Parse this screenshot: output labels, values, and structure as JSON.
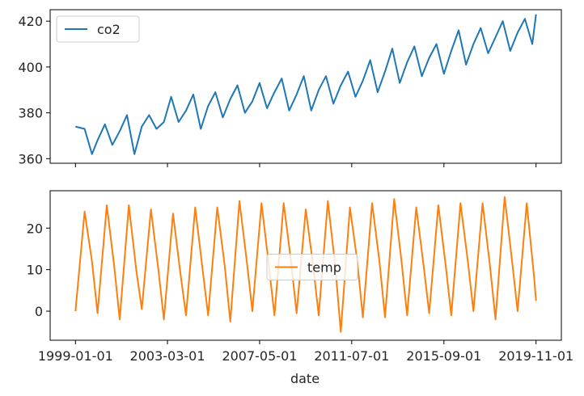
{
  "chart_data": [
    {
      "type": "line",
      "title": "",
      "xlabel": "",
      "ylabel": "",
      "ylim": [
        358,
        425
      ],
      "yticks": [
        360,
        380,
        400,
        420
      ],
      "grid": false,
      "legend": "top-left",
      "series": [
        {
          "name": "co2",
          "color": "#1f77b4",
          "x": [
            "1999-01-01",
            "1999-06-01",
            "1999-10-01",
            "2000-01-01",
            "2000-05-01",
            "2000-09-01",
            "2001-01-01",
            "2001-05-01",
            "2001-09-01",
            "2002-01-01",
            "2002-05-01",
            "2002-09-01",
            "2003-01-01",
            "2003-05-01",
            "2003-09-01",
            "2004-01-01",
            "2004-05-01",
            "2004-09-01",
            "2005-01-01",
            "2005-05-01",
            "2005-09-01",
            "2006-01-01",
            "2006-05-01",
            "2006-09-01",
            "2007-01-01",
            "2007-05-01",
            "2007-09-01",
            "2008-01-01",
            "2008-05-01",
            "2008-09-01",
            "2009-01-01",
            "2009-05-01",
            "2009-09-01",
            "2010-01-01",
            "2010-05-01",
            "2010-09-01",
            "2011-01-01",
            "2011-05-01",
            "2011-09-01",
            "2012-01-01",
            "2012-05-01",
            "2012-09-01",
            "2013-01-01",
            "2013-05-01",
            "2013-09-01",
            "2014-01-01",
            "2014-05-01",
            "2014-09-01",
            "2015-01-01",
            "2015-05-01",
            "2015-09-01",
            "2016-01-01",
            "2016-05-01",
            "2016-09-01",
            "2017-01-01",
            "2017-05-01",
            "2017-09-01",
            "2018-01-01",
            "2018-05-01",
            "2018-09-01",
            "2019-01-01",
            "2019-05-01",
            "2019-09-01",
            "2019-11-01"
          ],
          "values": [
            374,
            373,
            362,
            368,
            375,
            366,
            372,
            379,
            362,
            374,
            379,
            373,
            376,
            387,
            376,
            381,
            388,
            373,
            383,
            389,
            378,
            386,
            392,
            380,
            385,
            393,
            382,
            389,
            395,
            381,
            388,
            396,
            381,
            390,
            396,
            384,
            392,
            398,
            387,
            394,
            403,
            389,
            398,
            408,
            393,
            402,
            409,
            396,
            404,
            410,
            397,
            407,
            416,
            401,
            410,
            417,
            406,
            413,
            420,
            407,
            415,
            421,
            410,
            423
          ]
        }
      ]
    },
    {
      "type": "line",
      "title": "",
      "xlabel": "date",
      "ylabel": "",
      "ylim": [
        -7,
        29
      ],
      "yticks": [
        0,
        10,
        20
      ],
      "xticks": [
        "1999-01-01",
        "2003-03-01",
        "2007-05-01",
        "2011-07-01",
        "2015-09-01",
        "2019-11-01"
      ],
      "grid": false,
      "legend": "center",
      "series": [
        {
          "name": "temp",
          "color": "#ff7f0e",
          "x": [
            "1999-01-01",
            "1999-06-01",
            "1999-10-01",
            "2000-01-01",
            "2000-06-01",
            "2000-10-01",
            "2001-01-01",
            "2001-06-01",
            "2001-10-01",
            "2002-01-01",
            "2002-06-01",
            "2002-10-01",
            "2003-01-01",
            "2003-06-01",
            "2003-10-01",
            "2004-01-01",
            "2004-06-01",
            "2004-10-01",
            "2005-01-01",
            "2005-06-01",
            "2005-10-01",
            "2006-01-01",
            "2006-06-01",
            "2006-10-01",
            "2007-01-01",
            "2007-06-01",
            "2007-10-01",
            "2008-01-01",
            "2008-06-01",
            "2008-10-01",
            "2009-01-01",
            "2009-06-01",
            "2009-10-01",
            "2010-01-01",
            "2010-06-01",
            "2010-10-01",
            "2011-01-01",
            "2011-06-01",
            "2011-10-01",
            "2012-01-01",
            "2012-06-01",
            "2012-10-01",
            "2013-01-01",
            "2013-06-01",
            "2013-10-01",
            "2014-01-01",
            "2014-06-01",
            "2014-10-01",
            "2015-01-01",
            "2015-06-01",
            "2015-10-01",
            "2016-01-01",
            "2016-06-01",
            "2016-10-01",
            "2017-01-01",
            "2017-06-01",
            "2017-10-01",
            "2018-01-01",
            "2018-06-01",
            "2018-10-01",
            "2019-01-01",
            "2019-06-01",
            "2019-10-01",
            "2019-11-01"
          ],
          "values": [
            0,
            24,
            12,
            -0.5,
            25.5,
            11,
            -2,
            25.5,
            10,
            0.5,
            24.5,
            10,
            -2,
            23.5,
            9,
            -1,
            25,
            10,
            -1,
            25,
            11,
            -2.5,
            26.5,
            12,
            0,
            26,
            11,
            -1,
            26,
            12,
            -0.5,
            24.5,
            11,
            -1,
            26.5,
            11,
            -5,
            25,
            12,
            -1.5,
            26,
            12,
            -1.5,
            27,
            12,
            -1,
            25,
            11,
            -0.5,
            25.5,
            11,
            -1,
            26,
            12,
            0,
            26,
            11,
            -2,
            27.5,
            12,
            0,
            26,
            8,
            2.5
          ]
        }
      ]
    }
  ]
}
